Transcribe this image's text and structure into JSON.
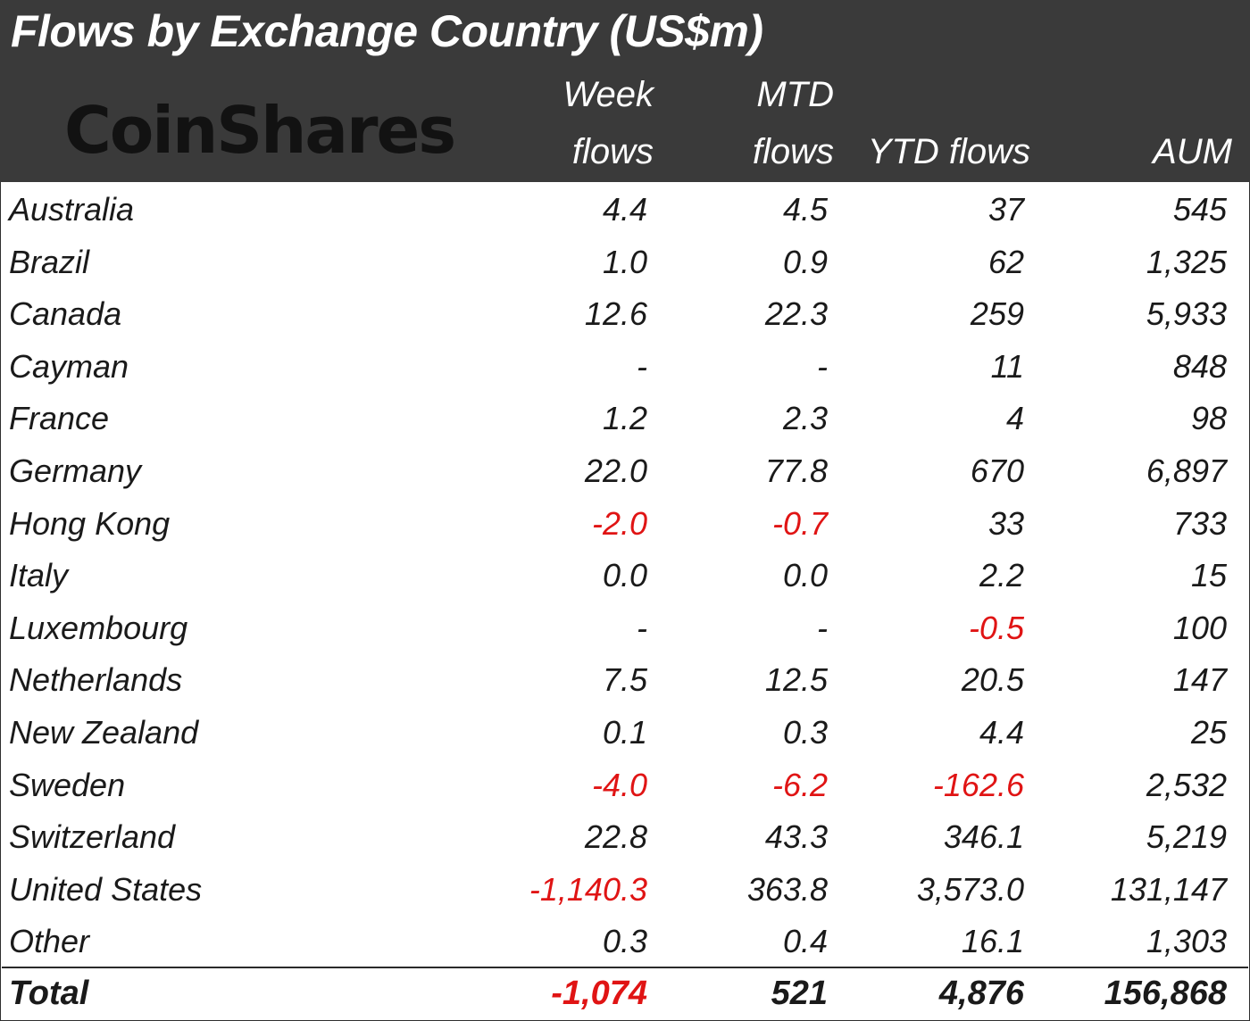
{
  "chart_data": {
    "type": "table",
    "title": "Flows by Exchange Country (US$m)",
    "brand": "CoinShares",
    "columns": [
      {
        "key": "week",
        "line1": "Week",
        "line2": "flows"
      },
      {
        "key": "mtd",
        "line1": "MTD",
        "line2": "flows"
      },
      {
        "key": "ytd",
        "line1": "",
        "line2": "YTD flows"
      },
      {
        "key": "aum",
        "line1": "",
        "line2": "AUM"
      }
    ],
    "rows": [
      {
        "country": "Australia",
        "week": "4.4",
        "mtd": "4.5",
        "ytd": "37",
        "aum": "545"
      },
      {
        "country": "Brazil",
        "week": "1.0",
        "mtd": "0.9",
        "ytd": "62",
        "aum": "1,325"
      },
      {
        "country": "Canada",
        "week": "12.6",
        "mtd": "22.3",
        "ytd": "259",
        "aum": "5,933"
      },
      {
        "country": "Cayman",
        "week": "-",
        "mtd": "-",
        "ytd": "11",
        "aum": "848"
      },
      {
        "country": "France",
        "week": "1.2",
        "mtd": "2.3",
        "ytd": "4",
        "aum": "98"
      },
      {
        "country": "Germany",
        "week": "22.0",
        "mtd": "77.8",
        "ytd": "670",
        "aum": "6,897"
      },
      {
        "country": "Hong Kong",
        "week": "-2.0",
        "mtd": "-0.7",
        "ytd": "33",
        "aum": "733"
      },
      {
        "country": "Italy",
        "week": "0.0",
        "mtd": "0.0",
        "ytd": "2.2",
        "aum": "15"
      },
      {
        "country": "Luxembourg",
        "week": "-",
        "mtd": "-",
        "ytd": "-0.5",
        "aum": "100"
      },
      {
        "country": "Netherlands",
        "week": "7.5",
        "mtd": "12.5",
        "ytd": "20.5",
        "aum": "147"
      },
      {
        "country": "New Zealand",
        "week": "0.1",
        "mtd": "0.3",
        "ytd": "4.4",
        "aum": "25"
      },
      {
        "country": "Sweden",
        "week": "-4.0",
        "mtd": "-6.2",
        "ytd": "-162.6",
        "aum": "2,532"
      },
      {
        "country": "Switzerland",
        "week": "22.8",
        "mtd": "43.3",
        "ytd": "346.1",
        "aum": "5,219"
      },
      {
        "country": "United States",
        "week": "-1,140.3",
        "mtd": "363.8",
        "ytd": "3,573.0",
        "aum": "131,147"
      },
      {
        "country": "Other",
        "week": "0.3",
        "mtd": "0.4",
        "ytd": "16.1",
        "aum": "1,303"
      }
    ],
    "total": {
      "country": "Total",
      "week": "-1,074",
      "mtd": "521",
      "ytd": "4,876",
      "aum": "156,868"
    },
    "colors": {
      "header_bg": "#3a3a3a",
      "negative": "#e01414",
      "text": "#1a1a1a"
    }
  }
}
